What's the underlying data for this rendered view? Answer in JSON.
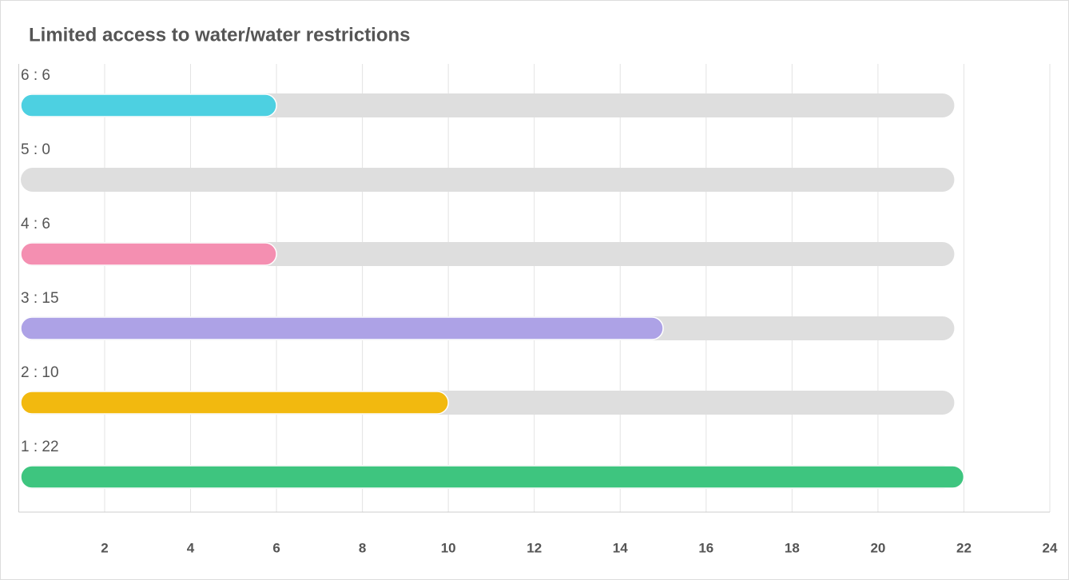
{
  "chart_data": {
    "type": "hbar",
    "title": "Limited access to water/water restrictions",
    "values": [
      6,
      0,
      6,
      15,
      10,
      22
    ],
    "value_labels": [
      "6 : 6",
      "5 : 0",
      "4 : 6",
      "3 : 15",
      "2 : 10",
      "1 : 22"
    ],
    "colors": [
      "#4dd0e1",
      "#4dd0e1",
      "#f48fb1",
      "#ada2e6",
      "#f2b90f",
      "#3ec57f"
    ],
    "xlim": [
      0,
      24
    ],
    "xticks": [
      2,
      4,
      6,
      8,
      10,
      12,
      14,
      16,
      18,
      20,
      22,
      24
    ],
    "grid": true
  }
}
